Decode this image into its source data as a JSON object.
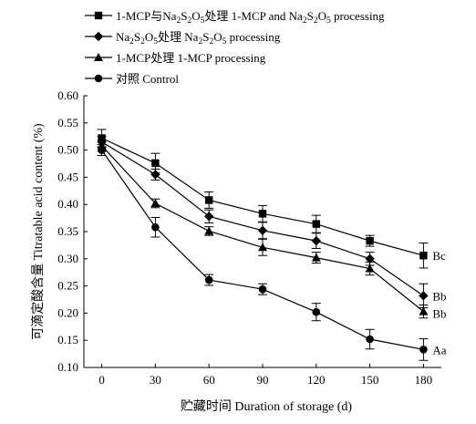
{
  "chart_data": {
    "type": "line",
    "xlabel": "贮藏时间 Duration of storage (d)",
    "ylabel": "可滴定酸含量 Titratable acid content (%)",
    "x": [
      0,
      30,
      60,
      90,
      120,
      150,
      180
    ],
    "xlim": [
      -10,
      190
    ],
    "ylim": [
      0.1,
      0.6
    ],
    "xticks": [
      "0",
      "30",
      "60",
      "90",
      "120",
      "150",
      "180"
    ],
    "yticks": [
      "0.10",
      "0.15",
      "0.20",
      "0.25",
      "0.30",
      "0.35",
      "0.40",
      "0.45",
      "0.50",
      "0.55",
      "0.60"
    ],
    "grid": false,
    "legend_position": "top-left, above plot",
    "series": [
      {
        "name": "1-MCP与Na2S2O5处理 1-MCP and Na2S2O5 processing",
        "marker": "square",
        "values": [
          0.522,
          0.476,
          0.408,
          0.383,
          0.364,
          0.333,
          0.306
        ],
        "errors": [
          0.016,
          0.018,
          0.015,
          0.015,
          0.016,
          0.01,
          0.023
        ],
        "end_label": "Bc"
      },
      {
        "name": "Na2S2O5处理 Na2S2O5 processing",
        "marker": "diamond",
        "values": [
          0.515,
          0.455,
          0.378,
          0.352,
          0.333,
          0.3,
          0.232
        ],
        "errors": [
          0.01,
          0.01,
          0.012,
          0.015,
          0.014,
          0.012,
          0.022
        ],
        "end_label": "Bb"
      },
      {
        "name": "1-MCP处理 1-MCP processing",
        "marker": "triangle",
        "values": [
          0.508,
          0.402,
          0.351,
          0.321,
          0.302,
          0.282,
          0.203
        ],
        "errors": [
          0.01,
          0.008,
          0.008,
          0.015,
          0.01,
          0.012,
          0.012
        ],
        "end_label": "Bb"
      },
      {
        "name": "对照 Control",
        "marker": "circle",
        "values": [
          0.5,
          0.358,
          0.261,
          0.244,
          0.202,
          0.152,
          0.133
        ],
        "errors": [
          0.01,
          0.018,
          0.01,
          0.01,
          0.016,
          0.018,
          0.02
        ],
        "end_label": "Aa"
      }
    ]
  },
  "legend_rich": [
    {
      "parts": [
        [
          "1-MCP与Na",
          ""
        ],
        [
          "2",
          "sub"
        ],
        [
          "S",
          ""
        ],
        [
          "2",
          "sub"
        ],
        [
          "O",
          ""
        ],
        [
          "5",
          "sub"
        ],
        [
          "处理 1-MCP and Na",
          ""
        ],
        [
          "2",
          "sub"
        ],
        [
          "S",
          ""
        ],
        [
          "2",
          "sub"
        ],
        [
          "O",
          ""
        ],
        [
          "5",
          "sub"
        ],
        [
          " processing",
          ""
        ]
      ]
    },
    {
      "parts": [
        [
          "Na",
          ""
        ],
        [
          "2",
          "sub"
        ],
        [
          "S",
          ""
        ],
        [
          "2",
          "sub"
        ],
        [
          "O",
          ""
        ],
        [
          "5",
          "sub"
        ],
        [
          "处理 Na",
          ""
        ],
        [
          "2",
          "sub"
        ],
        [
          "S",
          ""
        ],
        [
          "2",
          "sub"
        ],
        [
          "O",
          ""
        ],
        [
          "5",
          "sub"
        ],
        [
          " processing",
          ""
        ]
      ]
    },
    {
      "parts": [
        [
          "1-MCP处理 1-MCP processing",
          ""
        ]
      ]
    },
    {
      "parts": [
        [
          "对照 Control",
          ""
        ]
      ]
    }
  ]
}
